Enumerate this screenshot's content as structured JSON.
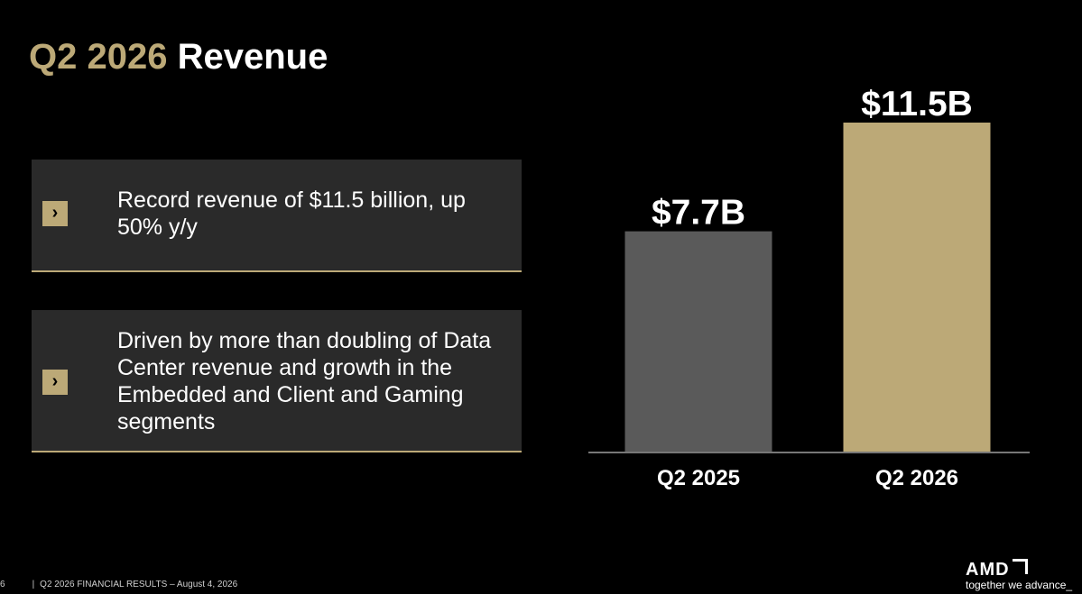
{
  "slide": {
    "title_accent": "Q2 2026",
    "title_rest": "Revenue",
    "bullets": [
      {
        "text": "Record revenue of $11.5 billion, up 50% y/y"
      },
      {
        "text": "Driven by more than doubling of Data Center revenue and growth in the Embedded and Client and Gaming segments"
      }
    ],
    "footer": {
      "page": "6",
      "text": "Q2 2026 FINANCIAL RESULTS – August 4, 2026"
    },
    "logo": {
      "brand": "AMD",
      "tagline": "together we advance_"
    }
  },
  "colors": {
    "accent": "#bca977",
    "bar_prior": "#5a5a5a",
    "bar_current": "#bca977",
    "card_bg": "#2a2a2a",
    "axis": "#777777"
  },
  "chart_data": {
    "type": "bar",
    "categories": [
      "Q2 2025",
      "Q2 2026"
    ],
    "values": [
      7.7,
      11.5
    ],
    "labels": [
      "$7.7B",
      "$11.5B"
    ],
    "ylim": [
      0,
      11.5
    ],
    "grid": false
  }
}
